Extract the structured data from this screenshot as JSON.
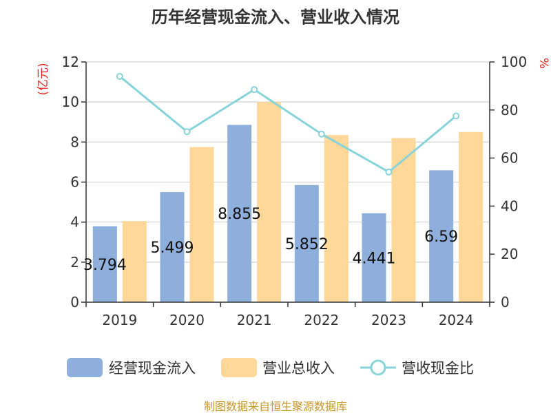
{
  "chart_data": {
    "type": "bar",
    "title": "历年经营现金流入、营业收入情况",
    "categories": [
      "2019",
      "2020",
      "2021",
      "2022",
      "2023",
      "2024"
    ],
    "series": [
      {
        "name": "经营现金流入",
        "type": "bar",
        "axis": "left",
        "color": "#8eaedb",
        "values": [
          3.794,
          5.499,
          8.855,
          5.852,
          4.441,
          6.59
        ]
      },
      {
        "name": "营业总收入",
        "type": "bar",
        "axis": "left",
        "color": "#fed899",
        "values": [
          4.05,
          7.75,
          10.0,
          8.35,
          8.2,
          8.5
        ]
      },
      {
        "name": "营收现金比",
        "type": "line",
        "axis": "right",
        "color": "#86d4d9",
        "values": [
          94,
          71,
          88.5,
          70,
          54.2,
          77.5
        ]
      }
    ],
    "data_labels": [
      "3.794",
      "5.499",
      "8.855",
      "5.852",
      "4.441",
      "6.59"
    ],
    "left_axis": {
      "unit": "(亿元)",
      "ylim": [
        0,
        12
      ],
      "ticks": [
        "0",
        "2",
        "4",
        "6",
        "8",
        "10",
        "12"
      ]
    },
    "right_axis": {
      "unit": "%",
      "ylim": [
        0,
        100
      ],
      "ticks": [
        "0",
        "20",
        "40",
        "60",
        "80",
        "100"
      ]
    },
    "legend_position": "bottom",
    "grid": true,
    "source": "制图数据来自恒生聚源数据库"
  }
}
